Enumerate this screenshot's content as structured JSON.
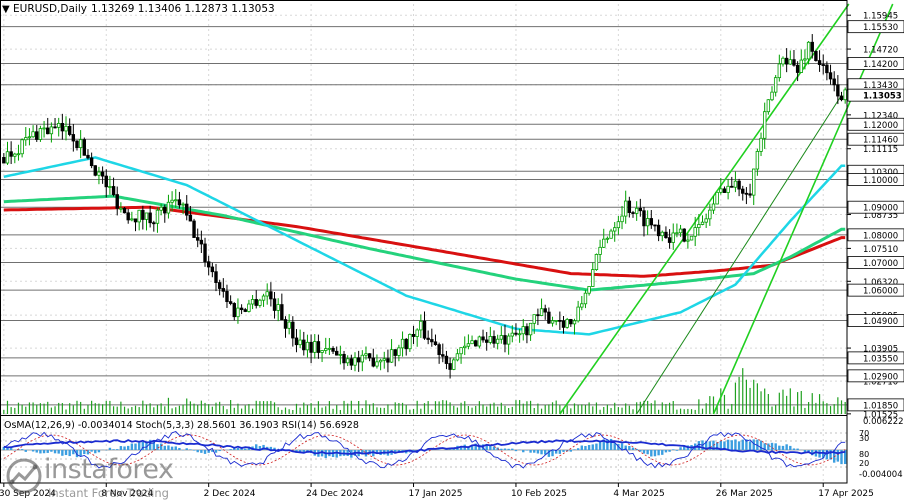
{
  "header": {
    "symbol_line": "EURUSD,Daily",
    "values": "1.13269 1.13406 1.12873 1.13053"
  },
  "indicator_header": "OsMA(12,26,9) -0.0034014  Stoch(5,3,3) 28.5601 36.1903  RSI(14) 56.6928",
  "watermark": {
    "brand": "instaforex",
    "sub": "Instant Forex Trading"
  },
  "colors": {
    "bull_candle": "#00a000",
    "bear_candle": "#000000",
    "ma_fast": "#1ed6e6",
    "ma_mid": "#24d27c",
    "ma_slow": "#d81010",
    "channel": "#20d020",
    "volume": "#20a020",
    "osma": "#3b9ee0",
    "stoch_main": "#1a2bd0",
    "stoch_signal": "#d02020",
    "rsi": "#1a2bd0"
  },
  "chart_data": {
    "type": "candlestick",
    "ylim": [
      1.0152,
      1.1635
    ],
    "price_ticks": [
      "1.15945",
      "1.14720",
      "1.13430",
      "1.12340",
      "1.11115",
      "1.10000",
      "1.08735",
      "1.07510",
      "1.06320",
      "1.05095",
      "1.03905",
      "1.02710",
      "1.01525"
    ],
    "level_labels": [
      {
        "value": 1.1553,
        "label": "1.15530"
      },
      {
        "value": 1.142,
        "label": "1.14200"
      },
      {
        "value": 1.1343,
        "label": "1.13430"
      },
      {
        "value": 1.12,
        "label": "1.12000"
      },
      {
        "value": 1.1146,
        "label": "1.11460"
      },
      {
        "value": 1.103,
        "label": "1.10300"
      },
      {
        "value": 1.1,
        "label": "1.10000"
      },
      {
        "value": 1.09,
        "label": "1.09000"
      },
      {
        "value": 1.08,
        "label": "1.08000"
      },
      {
        "value": 1.07,
        "label": "1.07000"
      },
      {
        "value": 1.06,
        "label": "1.06000"
      },
      {
        "value": 1.049,
        "label": "1.04900"
      },
      {
        "value": 1.0355,
        "label": "1.03550"
      },
      {
        "value": 1.029,
        "label": "1.02900"
      },
      {
        "value": 1.0185,
        "label": "1.01850"
      }
    ],
    "current_price": {
      "value": 1.13053,
      "label": "1.13053"
    },
    "x_labels": [
      "30 Sep 2024",
      "8 Nov 2024",
      "2 Dec 2024",
      "24 Dec 2024",
      "17 Jan 2025",
      "10 Feb 2025",
      "4 Mar 2025",
      "26 Mar 2025",
      "17 Apr 2025"
    ],
    "anchors": [
      [
        0,
        1.108
      ],
      [
        10,
        1.118
      ],
      [
        18,
        1.118
      ],
      [
        25,
        1.104
      ],
      [
        33,
        1.088
      ],
      [
        40,
        1.086
      ],
      [
        48,
        1.092
      ],
      [
        56,
        1.069
      ],
      [
        63,
        1.052
      ],
      [
        72,
        1.059
      ],
      [
        80,
        1.042
      ],
      [
        88,
        1.038
      ],
      [
        98,
        1.034
      ],
      [
        106,
        1.037
      ],
      [
        114,
        1.046
      ],
      [
        122,
        1.034
      ],
      [
        130,
        1.043
      ],
      [
        138,
        1.041
      ],
      [
        147,
        1.051
      ],
      [
        156,
        1.048
      ],
      [
        164,
        1.078
      ],
      [
        170,
        1.091
      ],
      [
        176,
        1.085
      ],
      [
        183,
        1.079
      ],
      [
        190,
        1.082
      ],
      [
        197,
        1.098
      ],
      [
        204,
        1.097
      ],
      [
        208,
        1.122
      ],
      [
        213,
        1.146
      ],
      [
        217,
        1.139
      ],
      [
        220,
        1.149
      ],
      [
        226,
        1.135
      ],
      [
        229,
        1.1305
      ]
    ],
    "ma_fast": [
      [
        0,
        1.101
      ],
      [
        25,
        1.108
      ],
      [
        50,
        1.098
      ],
      [
        80,
        1.078
      ],
      [
        110,
        1.058
      ],
      [
        140,
        1.046
      ],
      [
        160,
        1.044
      ],
      [
        185,
        1.052
      ],
      [
        200,
        1.062
      ],
      [
        215,
        1.085
      ],
      [
        229,
        1.105
      ]
    ],
    "ma_mid": [
      [
        0,
        1.092
      ],
      [
        30,
        1.094
      ],
      [
        60,
        1.087
      ],
      [
        100,
        1.075
      ],
      [
        140,
        1.064
      ],
      [
        160,
        1.06
      ],
      [
        185,
        1.063
      ],
      [
        205,
        1.066
      ],
      [
        215,
        1.072
      ],
      [
        229,
        1.082
      ]
    ],
    "ma_slow": [
      [
        0,
        1.089
      ],
      [
        40,
        1.09
      ],
      [
        80,
        1.083
      ],
      [
        120,
        1.074
      ],
      [
        155,
        1.066
      ],
      [
        175,
        1.065
      ],
      [
        195,
        1.067
      ],
      [
        210,
        1.069
      ],
      [
        229,
        1.079
      ]
    ],
    "channel_lines": [
      [
        [
          152,
          1.0152
        ],
        [
          231,
          1.1635
        ]
      ],
      [
        [
          173,
          1.0152
        ],
        [
          229,
          1.1305
        ]
      ],
      [
        [
          194,
          1.0152
        ],
        [
          243,
          1.1635
        ]
      ]
    ],
    "volume_note": "volume histogram at bottom of price pane",
    "indicators": {
      "osma_scale_top": "0.0062223",
      "osma_scale_bottom": "-0.004004",
      "osc_ticks": [
        "70",
        "30",
        "80",
        "20"
      ]
    }
  }
}
